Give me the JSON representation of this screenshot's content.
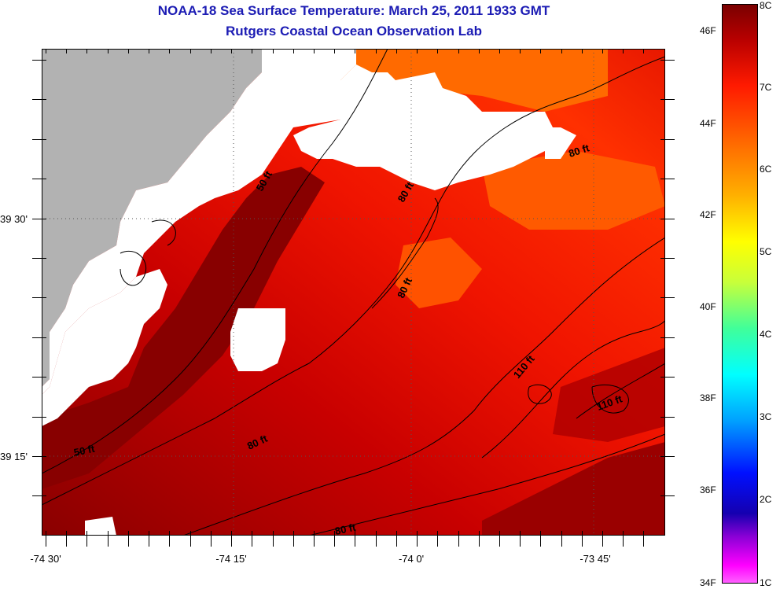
{
  "title": "NOAA-18 Sea Surface Temperature:  March 25, 2011 1933 GMT",
  "subtitle": "Rutgers Coastal Ocean Observation Lab",
  "map": {
    "lon_labels": [
      "-74 30'",
      "-74 15'",
      "-74 0'",
      "-73 45'"
    ],
    "lat_labels": [
      "39 30'",
      "39 15'"
    ],
    "contour_labels": [
      "50 ft",
      "80 ft",
      "80 ft",
      "80 ft",
      "110 ft",
      "110 ft",
      "50 ft",
      "80 ft",
      "80 ft"
    ],
    "colors": {
      "land": "#b2b2b2",
      "cloud": "#ffffff",
      "warm": "#8a0000",
      "hot": "#e80000",
      "mid": "#ff4000"
    }
  },
  "colorbar": {
    "fahrenheit_labels": [
      "46F",
      "44F",
      "42F",
      "40F",
      "38F",
      "36F",
      "34F"
    ],
    "celsius_labels": [
      "8C",
      "7C",
      "6C",
      "5C",
      "4C",
      "3C",
      "2C",
      "1C"
    ]
  }
}
